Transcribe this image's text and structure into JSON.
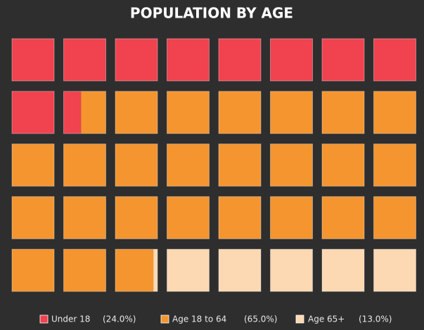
{
  "chart_data": {
    "type": "waffle",
    "title": "POPULATION BY AGE",
    "rows": 5,
    "columns": 8,
    "series": [
      {
        "name": "Under 18",
        "color": "#f0424f",
        "values": [
          24.0
        ],
        "value_labels": [
          "(24.0%)"
        ]
      },
      {
        "name": "Age 18 to 64",
        "color": "#f4952f",
        "values": [
          65.0
        ],
        "value_labels": [
          "(65.0%)"
        ]
      },
      {
        "name": "Age 65+",
        "color": "#fcd8b3",
        "values": [
          13.0
        ],
        "value_labels": [
          "(13.0%)"
        ]
      }
    ]
  }
}
